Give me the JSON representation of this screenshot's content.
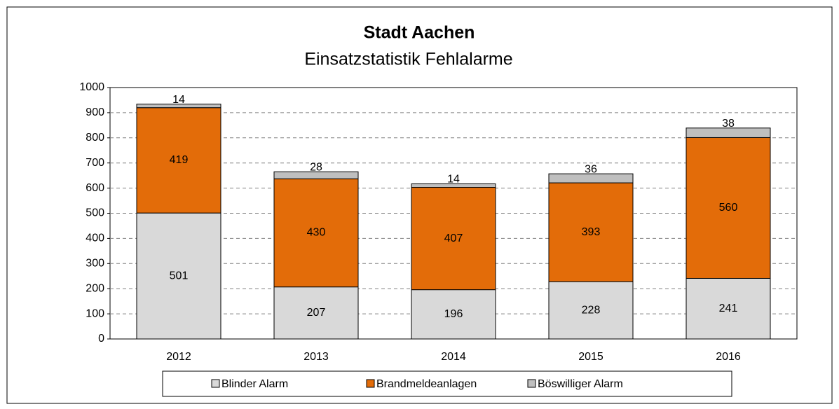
{
  "chart_data": {
    "type": "stacked_bar",
    "title": "Stadt Aachen",
    "subtitle": "Einsatzstatistik Fehlalarme",
    "categories": [
      "2012",
      "2013",
      "2014",
      "2015",
      "2016"
    ],
    "series": [
      {
        "name": "Blinder Alarm",
        "color": "#d9d9d9",
        "values": [
          501,
          207,
          196,
          228,
          241
        ]
      },
      {
        "name": "Brandmeldeanlagen",
        "color": "#e36c09",
        "values": [
          419,
          430,
          407,
          393,
          560
        ]
      },
      {
        "name": "Böswilliger Alarm",
        "color": "#bfbfbf",
        "values": [
          14,
          28,
          14,
          36,
          38
        ]
      }
    ],
    "ylim": [
      0,
      1000
    ],
    "yticks": [
      0,
      100,
      200,
      300,
      400,
      500,
      600,
      700,
      800,
      900,
      1000
    ],
    "grid": true,
    "legend": "bottom"
  }
}
